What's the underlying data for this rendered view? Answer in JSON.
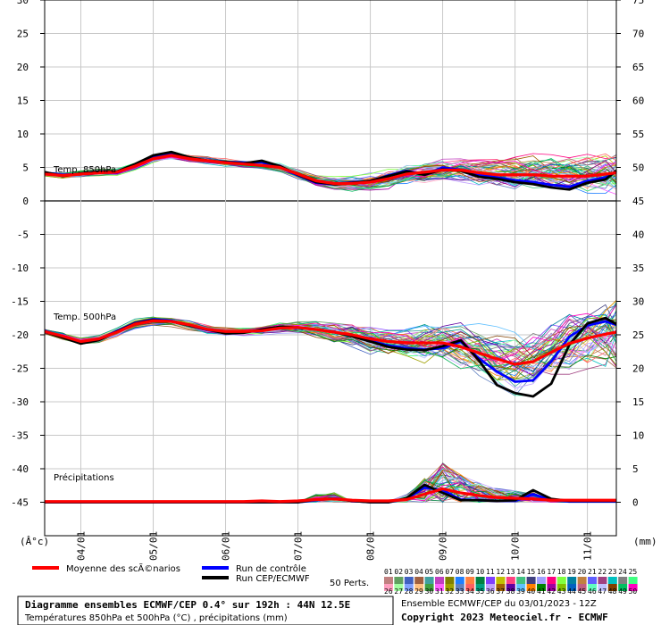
{
  "chart_data": {
    "type": "line",
    "left_axis_ticks": [
      30,
      25,
      20,
      15,
      10,
      5,
      0,
      -5,
      -10,
      -15,
      -20,
      -25,
      -30,
      -35,
      -40,
      -45
    ],
    "left_unit": "(Â°c)",
    "right_axis_ticks": [
      75,
      70,
      65,
      60,
      55,
      50,
      45,
      40,
      35,
      30,
      25,
      20,
      15,
      10,
      5,
      0
    ],
    "right_unit": "(mm)",
    "x_labels": [
      "04/01",
      "05/01",
      "06/01",
      "07/01",
      "08/01",
      "09/01",
      "10/01",
      "11/01"
    ],
    "x_range": [
      3.5,
      11.4
    ],
    "left_range": [
      -50,
      30
    ],
    "series_labels": {
      "t850": "Temp. 850hPa",
      "t500": "Temp. 500hPa",
      "precip": "Précipitations"
    },
    "x": [
      3.5,
      3.75,
      4.0,
      4.25,
      4.5,
      4.75,
      5.0,
      5.25,
      5.5,
      5.75,
      6.0,
      6.25,
      6.5,
      6.75,
      7.0,
      7.25,
      7.5,
      7.75,
      8.0,
      8.25,
      8.5,
      8.75,
      9.0,
      9.25,
      9.5,
      9.75,
      10.0,
      10.25,
      10.5,
      10.75,
      11.0,
      11.25,
      11.4
    ],
    "series": [
      {
        "name": "Moyenne des scÃ©narios",
        "group": "t850",
        "color": "#ff0000",
        "values": [
          4.0,
          3.8,
          4.0,
          4.2,
          4.3,
          5.2,
          6.3,
          6.8,
          6.3,
          6.0,
          5.7,
          5.5,
          5.3,
          5.0,
          4.0,
          3.0,
          2.6,
          2.6,
          2.8,
          3.3,
          4.0,
          4.3,
          4.6,
          4.6,
          4.2,
          3.9,
          3.9,
          3.9,
          3.7,
          3.7,
          3.7,
          4.0,
          4.2
        ]
      },
      {
        "name": "Run de contrôle",
        "group": "t850",
        "color": "#0000ff",
        "values": [
          4.2,
          3.9,
          4.0,
          4.3,
          4.2,
          5.3,
          6.5,
          7.0,
          6.4,
          6.0,
          5.8,
          5.7,
          5.8,
          5.0,
          3.8,
          2.7,
          2.5,
          2.8,
          2.9,
          3.8,
          4.5,
          3.9,
          5.0,
          4.6,
          3.9,
          3.5,
          3.1,
          2.8,
          2.4,
          2.1,
          3.0,
          3.5,
          4.3
        ]
      },
      {
        "name": "Run CEP/ECMWF",
        "group": "t850",
        "color": "#000000",
        "values": [
          4.3,
          3.7,
          4.1,
          4.4,
          4.4,
          5.5,
          6.8,
          7.3,
          6.5,
          6.0,
          5.8,
          5.6,
          6.0,
          5.2,
          3.9,
          2.8,
          2.5,
          2.7,
          3.0,
          3.7,
          4.4,
          3.9,
          4.7,
          4.5,
          3.6,
          3.3,
          2.8,
          2.5,
          2.0,
          1.7,
          2.7,
          3.2,
          4.5
        ]
      },
      {
        "name": "Moyenne des scÃ©narios",
        "group": "t500",
        "color": "#ff0000",
        "values": [
          -19.5,
          -20.2,
          -21.0,
          -20.6,
          -19.6,
          -18.4,
          -17.9,
          -18.0,
          -18.5,
          -19.2,
          -19.5,
          -19.5,
          -19.4,
          -19.0,
          -18.9,
          -19.2,
          -19.6,
          -20.0,
          -20.6,
          -21.0,
          -21.2,
          -21.2,
          -21.2,
          -21.8,
          -22.7,
          -23.6,
          -24.4,
          -24.0,
          -22.6,
          -21.3,
          -20.5,
          -19.9,
          -19.6
        ]
      },
      {
        "name": "Run de contrôle",
        "group": "t500",
        "color": "#0000ff",
        "values": [
          -19.4,
          -20.3,
          -21.2,
          -20.7,
          -19.4,
          -18.2,
          -17.7,
          -17.9,
          -18.6,
          -19.3,
          -19.7,
          -19.6,
          -19.3,
          -19.0,
          -18.9,
          -19.2,
          -19.6,
          -20.1,
          -20.9,
          -21.6,
          -22.0,
          -22.2,
          -22.0,
          -21.0,
          -23.5,
          -25.5,
          -27.0,
          -26.8,
          -24.0,
          -20.3,
          -18.6,
          -18.0,
          -18.5
        ]
      },
      {
        "name": "Run CEP/ECMWF",
        "group": "t500",
        "color": "#000000",
        "values": [
          -19.5,
          -20.4,
          -21.3,
          -20.8,
          -19.5,
          -18.3,
          -17.8,
          -18.0,
          -18.6,
          -19.2,
          -19.8,
          -19.7,
          -19.2,
          -18.8,
          -18.9,
          -19.2,
          -19.6,
          -20.2,
          -21.0,
          -21.8,
          -22.2,
          -22.3,
          -21.7,
          -20.8,
          -23.8,
          -27.5,
          -28.7,
          -29.2,
          -27.3,
          -21.5,
          -18.3,
          -17.5,
          -18.4
        ]
      },
      {
        "name": "Moyenne des scÃ©narios",
        "group": "precip",
        "color": "#ff0000",
        "values": [
          0.1,
          0.1,
          0.1,
          0.1,
          0.1,
          0.1,
          0.1,
          0.1,
          0.1,
          0.1,
          0.1,
          0.1,
          0.2,
          0.1,
          0.2,
          0.4,
          0.5,
          0.3,
          0.2,
          0.2,
          0.4,
          1.2,
          2.0,
          1.4,
          1.0,
          0.7,
          0.6,
          0.5,
          0.3,
          0.3,
          0.3,
          0.3,
          0.3
        ]
      },
      {
        "name": "Run de contrôle",
        "group": "precip",
        "color": "#0000ff",
        "values": [
          0.0,
          0.0,
          0.0,
          0.0,
          0.0,
          0.0,
          0.0,
          0.0,
          0.0,
          0.0,
          0.0,
          0.0,
          0.0,
          0.0,
          0.0,
          0.3,
          0.6,
          0.2,
          0.0,
          0.0,
          0.5,
          2.2,
          1.8,
          0.4,
          0.3,
          0.2,
          0.2,
          1.2,
          0.3,
          0.1,
          0.1,
          0.1,
          0.1
        ]
      },
      {
        "name": "Run CEP/ECMWF",
        "group": "precip",
        "color": "#000000",
        "values": [
          0.0,
          0.0,
          0.0,
          0.0,
          0.0,
          0.0,
          0.0,
          0.0,
          0.0,
          0.0,
          0.0,
          0.0,
          0.0,
          0.0,
          0.0,
          0.4,
          0.5,
          0.2,
          0.0,
          0.0,
          0.6,
          2.6,
          1.4,
          0.3,
          0.3,
          0.2,
          0.3,
          1.8,
          0.5,
          0.2,
          0.2,
          0.2,
          0.2
        ]
      }
    ],
    "members_count": 50
  },
  "legend": {
    "mean_label": "Moyenne des scÃ©narios",
    "control_label": "Run de contrôle",
    "cep_label": "Run CEP/ECMWF",
    "perts_label": "50 Perts.",
    "colors": {
      "mean": "#ff0000",
      "control": "#0000ff",
      "cep": "#000000"
    }
  },
  "member_labels": [
    "01",
    "02",
    "03",
    "04",
    "05",
    "06",
    "07",
    "08",
    "09",
    "10",
    "11",
    "12",
    "13",
    "14",
    "15",
    "16",
    "17",
    "18",
    "19",
    "20",
    "21",
    "22",
    "23",
    "24",
    "25",
    "26",
    "27",
    "28",
    "29",
    "30",
    "31",
    "32",
    "33",
    "34",
    "35",
    "36",
    "37",
    "38",
    "39",
    "40",
    "41",
    "42",
    "43",
    "44",
    "45",
    "46",
    "47",
    "48",
    "49",
    "50"
  ],
  "member_colors": [
    "#c08080",
    "#60a060",
    "#4060c0",
    "#a06040",
    "#40a0a0",
    "#c040c0",
    "#808000",
    "#2080ff",
    "#ff8040",
    "#008040",
    "#8040ff",
    "#c0c000",
    "#ff4080",
    "#40c080",
    "#404080",
    "#a0a0ff",
    "#ff0080",
    "#80ff40",
    "#0080a0",
    "#c08040",
    "#6060ff",
    "#a04080",
    "#00c0c0",
    "#808080",
    "#40ff80",
    "#ffa0c0",
    "#a0ffa0",
    "#80a0ff",
    "#ffc080",
    "#40a040",
    "#ff60ff",
    "#a0a000",
    "#6080c0",
    "#ff6060",
    "#00a080",
    "#c0a0ff",
    "#a06000",
    "#6000a0",
    "#60c0ff",
    "#ff8000",
    "#008000",
    "#a000a0",
    "#80c000",
    "#0060c0",
    "#c06080",
    "#60ffc0",
    "#c0c0ff",
    "#804000",
    "#00c060",
    "#ff00c0"
  ],
  "info_box": {
    "title": "Diagramme ensembles ECMWF/CEP 0.4° sur 192h : 44N 12.5E",
    "subtitle": "Températures 850hPa et 500hPa (°C) , précipitations (mm)"
  },
  "footer": {
    "run_info": "Ensemble ECMWF/CEP du 03/01/2023 - 12Z",
    "copyright": "Copyright 2023 Meteociel.fr - ECMWF"
  }
}
